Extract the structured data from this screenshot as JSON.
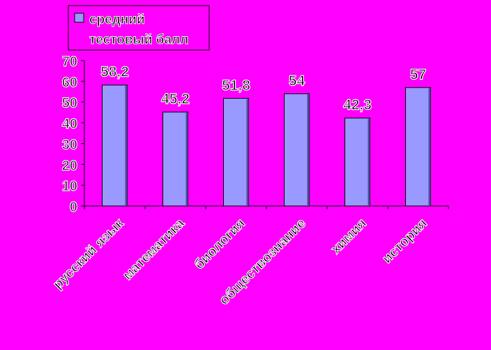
{
  "chart_data": {
    "type": "bar",
    "categories": [
      "русский язык",
      "математика",
      "биология",
      "обществознание",
      "химия",
      "история"
    ],
    "series": [
      {
        "name": "средний тестовый балл",
        "values": [
          58.2,
          45.2,
          51.8,
          54,
          42.3,
          57
        ]
      }
    ],
    "data_labels": [
      "58,2",
      "45,2",
      "51,8",
      "54",
      "42,3",
      "57"
    ],
    "ylim": [
      0,
      70
    ],
    "yticks": [
      0,
      10,
      20,
      30,
      40,
      50,
      60,
      70
    ],
    "legend_lines": [
      "средний",
      "тестовый балл"
    ],
    "legend_position": "top",
    "grid": false,
    "colors": {
      "background": "#ff00ff",
      "bar_face": "#9999ff",
      "bar_edge": "#000000",
      "axis": "#000000",
      "text_fill": "#000000",
      "text_outline": "#ffffff"
    }
  }
}
